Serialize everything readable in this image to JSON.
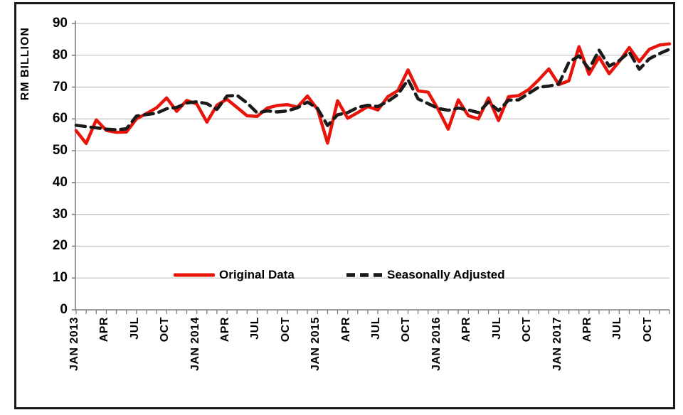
{
  "figure": {
    "background": "#ffffff",
    "border_color": "#1a1a1a"
  },
  "chart_data": {
    "type": "line",
    "title": "",
    "ylabel": "RM BILLION",
    "xlabel": "",
    "ylim": [
      0,
      90
    ],
    "y_ticks": [
      0,
      10,
      20,
      30,
      40,
      50,
      60,
      70,
      80,
      90
    ],
    "grid": "horizontal",
    "gridline_color": "#c8c8c8",
    "axis_color": "#808080",
    "legend_position": "inside-bottom-center",
    "x_categories": [
      "JAN 2013",
      "",
      "",
      "APR",
      "",
      "",
      "JUL",
      "",
      "",
      "OCT",
      "",
      "",
      "JAN 2014",
      "",
      "",
      "APR",
      "",
      "",
      "JUL",
      "",
      "",
      "OCT",
      "",
      "",
      "JAN 2015",
      "",
      "",
      "APR",
      "",
      "",
      "JUL",
      "",
      "",
      "OCT",
      "",
      "",
      "JAN 2016",
      "",
      "",
      "APR",
      "",
      "",
      "JUL",
      "",
      "",
      "OCT",
      "",
      "",
      "JAN 2017",
      "",
      "",
      "APR",
      "",
      "",
      "JUL",
      "",
      "",
      "OCT",
      "",
      ""
    ],
    "series": [
      {
        "name": "Original Data",
        "color": "#e8140c",
        "line_style": "solid",
        "values": [
          56.3,
          52.3,
          59.7,
          56.4,
          55.8,
          55.9,
          60.0,
          61.7,
          63.5,
          66.6,
          62.4,
          65.8,
          64.7,
          59.0,
          64.3,
          66.2,
          63.6,
          61.0,
          60.8,
          63.4,
          64.2,
          64.5,
          63.7,
          67.2,
          63.0,
          52.4,
          65.7,
          60.2,
          62.0,
          63.9,
          62.8,
          67.0,
          68.9,
          75.4,
          68.8,
          68.4,
          63.0,
          56.8,
          66.0,
          61.0,
          60.0,
          66.6,
          59.5,
          67.0,
          67.3,
          69.2,
          72.3,
          75.7,
          70.8,
          72.0,
          82.7,
          74.0,
          79.4,
          74.2,
          78.0,
          82.4,
          78.0,
          81.9,
          83.2,
          83.6
        ]
      },
      {
        "name": "Seasonally Adjusted",
        "color": "#1a1a1a",
        "line_style": "dashed",
        "values": [
          58.0,
          57.6,
          57.2,
          56.8,
          56.6,
          56.9,
          60.9,
          61.4,
          61.8,
          63.2,
          63.6,
          65.0,
          65.4,
          64.8,
          63.0,
          67.2,
          67.4,
          65.0,
          61.9,
          62.5,
          62.2,
          62.5,
          63.5,
          65.3,
          63.3,
          57.9,
          61.3,
          62.0,
          63.6,
          64.3,
          63.9,
          65.5,
          67.7,
          72.3,
          66.3,
          64.8,
          63.3,
          62.7,
          63.4,
          62.8,
          62.0,
          65.3,
          62.6,
          65.9,
          66.0,
          68.0,
          70.0,
          70.3,
          71.0,
          77.8,
          79.8,
          75.7,
          81.6,
          76.6,
          78.3,
          81.0,
          75.6,
          78.9,
          80.5,
          81.9
        ]
      }
    ]
  }
}
